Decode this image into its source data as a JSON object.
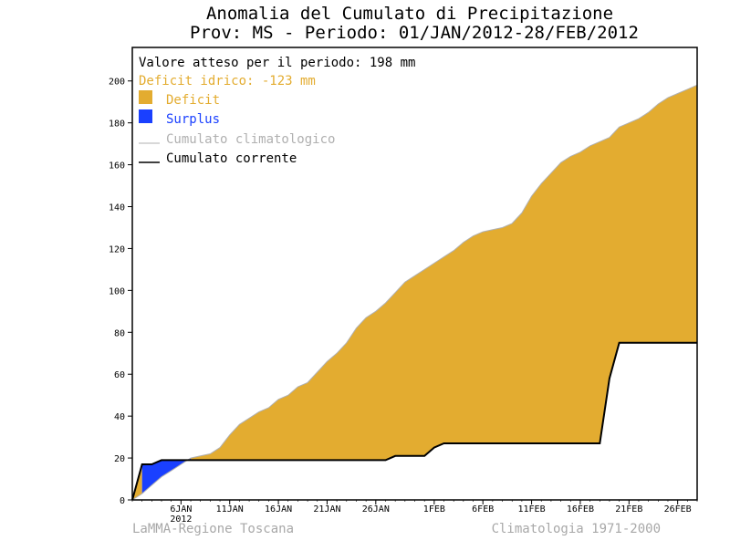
{
  "chart_data": {
    "type": "area",
    "title": "Anomalia del Cumulato di Precipitazione",
    "subtitle": "Prov: MS - Periodo: 01/JAN/2012-28/FEB/2012",
    "expected_text": "Valore atteso per il periodo: 198 mm",
    "deficit_text": "Deficit idrico: -123 mm",
    "legend": {
      "deficit": "Deficit",
      "surplus": "Surplus",
      "climatological": "Cumulato climatologico",
      "current": "Cumulato corrente"
    },
    "footer_left": "LaMMA-Regione Toscana",
    "footer_right": "Climatologia 1971-2000",
    "year_label": "2012",
    "x_range_days": [
      1,
      59
    ],
    "ylim": [
      0,
      216
    ],
    "y_ticks": [
      0,
      20,
      40,
      60,
      80,
      100,
      120,
      140,
      160,
      180,
      200
    ],
    "x_ticks": [
      {
        "day": 6,
        "label": "6JAN"
      },
      {
        "day": 11,
        "label": "11JAN"
      },
      {
        "day": 16,
        "label": "16JAN"
      },
      {
        "day": 21,
        "label": "21JAN"
      },
      {
        "day": 26,
        "label": "26JAN"
      },
      {
        "day": 32,
        "label": "1FEB"
      },
      {
        "day": 37,
        "label": "6FEB"
      },
      {
        "day": 42,
        "label": "11FEB"
      },
      {
        "day": 47,
        "label": "16FEB"
      },
      {
        "day": 52,
        "label": "21FEB"
      },
      {
        "day": 57,
        "label": "26FEB"
      }
    ],
    "colors": {
      "deficit": "#e3ac30",
      "surplus": "#1a40ff",
      "climatological": "#b0b0b0",
      "current": "#000000",
      "footer": "#a8a8a8"
    },
    "series": [
      {
        "name": "Cumulato climatologico",
        "x": [
          1,
          2,
          3,
          4,
          5,
          6,
          7,
          8,
          9,
          10,
          11,
          12,
          13,
          14,
          15,
          16,
          17,
          18,
          19,
          20,
          21,
          22,
          23,
          24,
          25,
          26,
          27,
          28,
          29,
          30,
          31,
          32,
          33,
          34,
          35,
          36,
          37,
          38,
          39,
          40,
          41,
          42,
          43,
          44,
          45,
          46,
          47,
          48,
          49,
          50,
          51,
          52,
          53,
          54,
          55,
          56,
          57,
          58,
          59
        ],
        "values": [
          0,
          3,
          7,
          11,
          14,
          17,
          20,
          21,
          22,
          25,
          31,
          36,
          39,
          42,
          44,
          48,
          50,
          54,
          56,
          61,
          66,
          70,
          75,
          82,
          87,
          90,
          94,
          99,
          104,
          107,
          110,
          113,
          116,
          119,
          123,
          126,
          128,
          129,
          130,
          132,
          137,
          145,
          151,
          156,
          161,
          164,
          166,
          169,
          171,
          173,
          178,
          180,
          182,
          185,
          189,
          192,
          194,
          196,
          198
        ]
      },
      {
        "name": "Cumulato corrente",
        "x": [
          1,
          2,
          3,
          4,
          5,
          6,
          7,
          8,
          9,
          10,
          11,
          12,
          13,
          14,
          15,
          16,
          17,
          18,
          19,
          20,
          21,
          22,
          23,
          24,
          25,
          26,
          27,
          28,
          29,
          30,
          31,
          32,
          33,
          34,
          35,
          36,
          37,
          38,
          39,
          40,
          41,
          42,
          43,
          44,
          45,
          46,
          47,
          48,
          49,
          50,
          51,
          52,
          53,
          54,
          55,
          56,
          57,
          58,
          59
        ],
        "values": [
          0,
          17,
          17,
          19,
          19,
          19,
          19,
          19,
          19,
          19,
          19,
          19,
          19,
          19,
          19,
          19,
          19,
          19,
          19,
          19,
          19,
          19,
          19,
          19,
          19,
          19,
          19,
          21,
          21,
          21,
          21,
          25,
          27,
          27,
          27,
          27,
          27,
          27,
          27,
          27,
          27,
          27,
          27,
          27,
          27,
          27,
          27,
          27,
          27,
          58,
          75,
          75,
          75,
          75,
          75,
          75,
          75,
          75,
          75
        ]
      }
    ]
  }
}
